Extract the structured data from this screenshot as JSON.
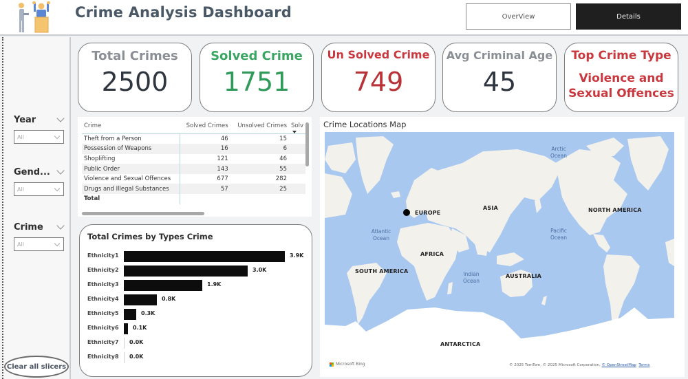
{
  "header": {
    "title": "Crime Analysis Dashboard",
    "logo_icon": "courtroom-people-icon",
    "nav": [
      {
        "label": "OverView",
        "active": false
      },
      {
        "label": "Details",
        "active": true
      }
    ]
  },
  "sidebar": {
    "slicers": [
      {
        "title": "Year",
        "value": "All"
      },
      {
        "title": "Gend...",
        "value": "All"
      },
      {
        "title": "Crime",
        "value": "All"
      }
    ],
    "clear_label": "Clear all slicers"
  },
  "kpis": [
    {
      "label": "Total Crimes",
      "value": "2500",
      "label_color": "#8a8f96",
      "value_color": "#2f3640"
    },
    {
      "label": "Solved Crime",
      "value": "1751",
      "label_color": "#3aa663",
      "value_color": "#2f9a5a"
    },
    {
      "label": "Un Solved Crime",
      "value": "749",
      "label_color": "#c9383f",
      "value_color": "#b83238"
    },
    {
      "label": "Avg Criminal Age",
      "value": "45",
      "label_color": "#8a8f96",
      "value_color": "#2f3640"
    },
    {
      "label": "Top Crime Type",
      "value": "Violence and Sexual Offences",
      "value_line1": "Violence and",
      "value_line2": "Sexual Offences",
      "label_color": "#c9383f",
      "value_color": "#c9383f"
    }
  ],
  "table": {
    "columns": [
      "Crime",
      "Solved Crimes",
      "Unsolved Crimes",
      "Solv"
    ],
    "rows": [
      {
        "crime": "Theft from a Person",
        "solved": "46",
        "unsolved": "15"
      },
      {
        "crime": "Possession of Weapons",
        "solved": "16",
        "unsolved": "6"
      },
      {
        "crime": "Shoplifting",
        "solved": "121",
        "unsolved": "46"
      },
      {
        "crime": "Public Order",
        "solved": "143",
        "unsolved": "55"
      },
      {
        "crime": "Violence and Sexual Offences",
        "solved": "677",
        "unsolved": "282"
      },
      {
        "crime": "Drugs and Illegal Substances",
        "solved": "57",
        "unsolved": "25"
      }
    ],
    "total_label": "Total"
  },
  "chart": {
    "title": "Total Crimes by Types Crime"
  },
  "chart_data": {
    "type": "bar",
    "orientation": "horizontal",
    "title": "Total Crimes by Types Crime",
    "categories": [
      "Ethnicity1",
      "Ethnicity2",
      "Ethnicity3",
      "Ethnicity4",
      "Ethnicity5",
      "Ethnicity6",
      "Ethnicity7",
      "Ethnicity8"
    ],
    "values": [
      3900,
      3000,
      1900,
      800,
      300,
      100,
      0,
      0
    ],
    "data_labels": [
      "3.9K",
      "3.0K",
      "1.9K",
      "0.8K",
      "0.3K",
      "0.1K",
      "0.0K",
      "0.0K"
    ],
    "xlabel": "",
    "ylabel": "",
    "grid": false,
    "bar_color": "#0d0d0d"
  },
  "map": {
    "title": "Crime Locations Map",
    "continents": [
      "EUROPE",
      "ASIA",
      "NORTH AMERICA",
      "AFRICA",
      "SOUTH AMERICA",
      "AUSTRALIA",
      "ANTARCTICA"
    ],
    "oceans": {
      "arctic": "Arctic Ocean",
      "atlantic": "Atlantic Ocean",
      "pacific": "Pacific Ocean",
      "indian": "Indian Ocean"
    },
    "brand": "Microsoft Bing",
    "attribution": "© 2025 TomTom, © 2025 Microsoft Corporation,",
    "attribution_link": "© OpenStreetMap",
    "terms": "Terms"
  }
}
